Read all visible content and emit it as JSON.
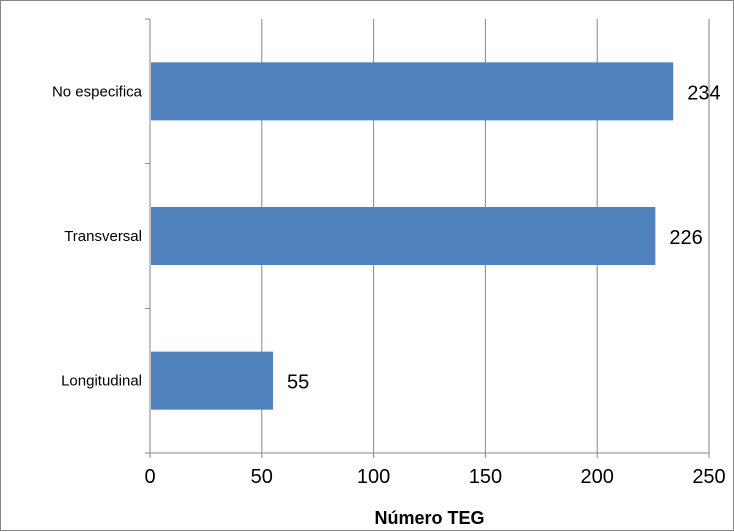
{
  "chart_data": {
    "type": "bar",
    "orientation": "horizontal",
    "categories": [
      "Longitudinal",
      "Transversal",
      "No especifica"
    ],
    "values": [
      55,
      226,
      234
    ],
    "data_labels": [
      "55",
      "226",
      "234"
    ],
    "xlabel": "Número TEG",
    "ylabel": "",
    "xlim": [
      0,
      250
    ],
    "x_ticks": [
      "0",
      "50",
      "100",
      "150",
      "200",
      "250"
    ],
    "x_tick_values": [
      0,
      50,
      100,
      150,
      200,
      250
    ],
    "grid": "vertical major gridlines",
    "legend": "none",
    "bar_color": "#4F81BD",
    "grid_color": "#868686"
  }
}
